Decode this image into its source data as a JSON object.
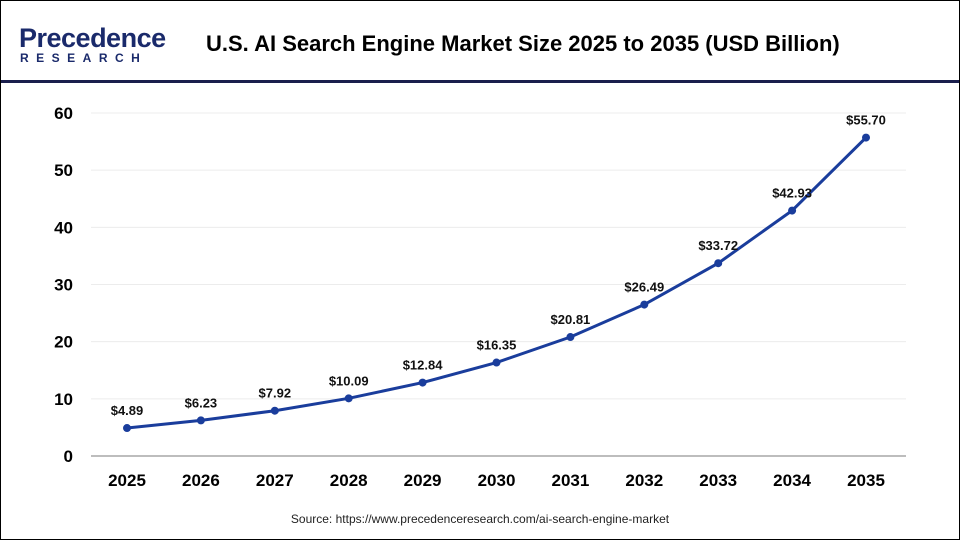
{
  "header": {
    "logo_text": "Precedence",
    "logo_subtext": "RESEARCH",
    "title": "U.S. AI Search Engine Market Size 2025 to 2035 (USD Billion)"
  },
  "footer": {
    "source": "Source: https://www.precedenceresearch.com/ai-search-engine-market"
  },
  "chart_data": {
    "type": "line",
    "title": "U.S. AI Search Engine Market Size 2025 to 2035 (USD Billion)",
    "categories": [
      "2025",
      "2026",
      "2027",
      "2028",
      "2029",
      "2030",
      "2031",
      "2032",
      "2033",
      "2034",
      "2035"
    ],
    "values": [
      4.89,
      6.23,
      7.92,
      10.09,
      12.84,
      16.35,
      20.81,
      26.49,
      33.72,
      42.93,
      55.7
    ],
    "data_labels": [
      "$4.89",
      "$6.23",
      "$7.92",
      "$10.09",
      "$12.84",
      "$16.35",
      "$20.81",
      "$26.49",
      "$33.72",
      "$42.93",
      "$55.70"
    ],
    "yticks": [
      "0",
      "10",
      "20",
      "30",
      "40",
      "50",
      "60"
    ],
    "ylim": [
      0,
      60
    ],
    "grid": true,
    "line_color": "#1a3d9c"
  }
}
